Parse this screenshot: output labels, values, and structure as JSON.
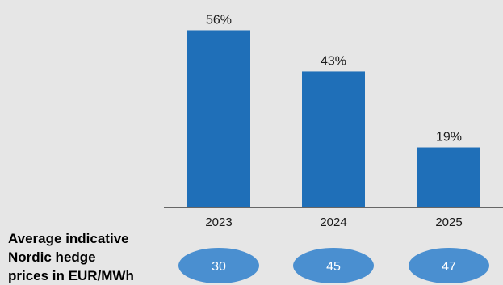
{
  "chart_data": {
    "type": "bar",
    "categories": [
      "2023",
      "2024",
      "2025"
    ],
    "values": [
      56,
      43,
      19
    ],
    "data_labels": [
      "56%",
      "43%",
      "19%"
    ],
    "ylim": [
      0,
      60
    ],
    "grid": false,
    "bar_color": "#1f6fb8",
    "price_label": [
      "Average indicative",
      "Nordic hedge",
      "prices in EUR/MWh"
    ],
    "prices": [
      "30",
      "45",
      "47"
    ],
    "price_color": "#4a8fd0"
  }
}
